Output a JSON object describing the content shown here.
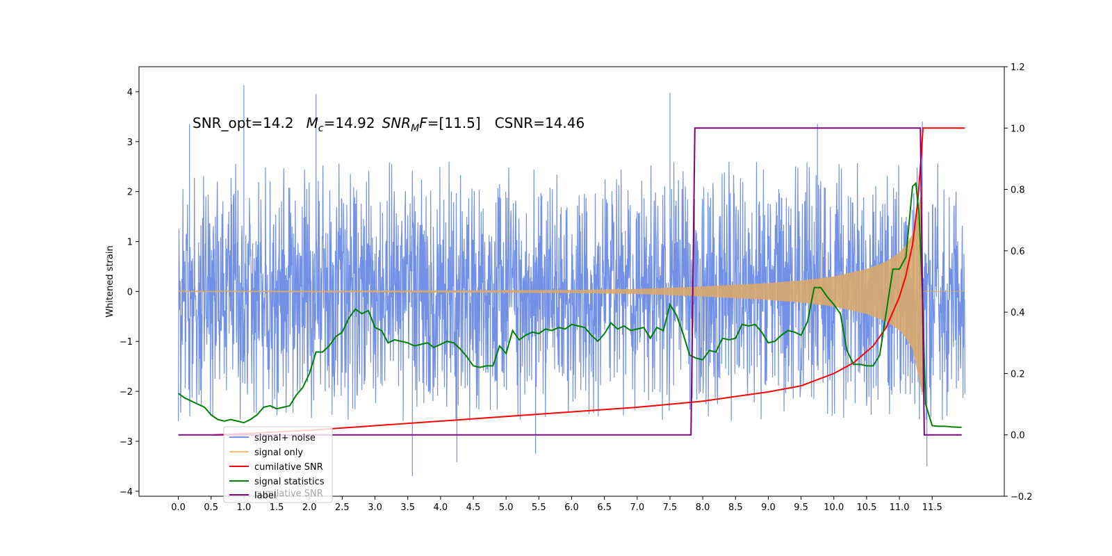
{
  "chart_data": {
    "type": "line",
    "ylabel": "Whitened strain",
    "annotation": {
      "snr_opt": "SNR_opt=14.2",
      "mc_sym": "M",
      "mc_sub": "c",
      "mc_val": "=14.92",
      "snrmf_sym": "SNR",
      "snrmf_sub": "M",
      "snrmf_f": "F",
      "snrmf_val": "=[11.5]",
      "csnr": "CSNR=14.46"
    },
    "x_ticks": [
      "0.0",
      "0.5",
      "1.0",
      "1.5",
      "2.0",
      "2.5",
      "3.0",
      "3.5",
      "4.0",
      "4.5",
      "5.0",
      "5.5",
      "6.0",
      "6.5",
      "7.0",
      "7.5",
      "8.0",
      "8.5",
      "9.0",
      "9.5",
      "10.0",
      "10.5",
      "11.0",
      "11.5"
    ],
    "xlim": [
      -0.6,
      12.6
    ],
    "y_left_ticks": [
      -4,
      -3,
      -2,
      -1,
      0,
      1,
      2,
      3,
      4
    ],
    "y_left_lim": [
      -4.1,
      4.5
    ],
    "y_right_ticks": [
      -0.2,
      0.0,
      0.2,
      0.4,
      0.6,
      0.8,
      1.0,
      1.2
    ],
    "y_right_lim": [
      -0.2,
      1.2
    ],
    "legend_placement": "lower-left",
    "legend": [
      "signal+ noise",
      "signal only",
      "cumilative SNR",
      "signal statistics",
      "label",
      "cumilative SNR"
    ],
    "colors": {
      "signal_noise": "#7190e6",
      "signal_only": "#d8a96a",
      "cumulative_snr": "#ff0000",
      "signal_statistics": "#008000",
      "label": "#800080"
    },
    "series": [
      {
        "name": "signal+ noise",
        "axis": "left",
        "x_range": [
          0.0,
          12.0
        ],
        "envelope_upper": 2.1,
        "envelope_lower": -2.1,
        "peaks": [
          [
            0.17,
            3.35
          ],
          [
            1.0,
            4.13
          ],
          [
            2.1,
            3.95
          ],
          [
            7.5,
            3.98
          ],
          [
            9.75,
            3.35
          ],
          [
            11.35,
            3.4
          ],
          [
            3.57,
            -3.7
          ],
          [
            4.25,
            -3.42
          ],
          [
            5.45,
            -3.25
          ],
          [
            11.42,
            -3.5
          ]
        ]
      },
      {
        "name": "signal only",
        "axis": "left",
        "x_range": [
          0.0,
          11.35
        ],
        "amplitude_x": [
          0.0,
          4.0,
          6.0,
          7.0,
          8.0,
          9.0,
          9.5,
          10.0,
          10.5,
          10.8,
          11.0,
          11.1,
          11.2,
          11.3,
          11.35
        ],
        "amplitude_y": [
          0.01,
          0.02,
          0.03,
          0.05,
          0.1,
          0.17,
          0.22,
          0.3,
          0.45,
          0.6,
          0.78,
          0.93,
          1.15,
          1.75,
          2.1
        ]
      },
      {
        "name": "cumilative SNR",
        "axis": "right",
        "x": [
          0.55,
          1.0,
          2.0,
          3.0,
          4.0,
          5.0,
          6.0,
          7.0,
          7.5,
          8.0,
          8.5,
          9.0,
          9.5,
          10.0,
          10.3,
          10.6,
          10.8,
          11.0,
          11.1,
          11.2,
          11.28,
          11.33,
          11.36,
          12.0
        ],
        "y": [
          0.0,
          0.004,
          0.015,
          0.03,
          0.045,
          0.06,
          0.075,
          0.09,
          0.1,
          0.11,
          0.125,
          0.14,
          0.16,
          0.2,
          0.235,
          0.29,
          0.35,
          0.45,
          0.52,
          0.62,
          0.76,
          0.9,
          1.0,
          1.0
        ]
      },
      {
        "name": "signal statistics",
        "axis": "right",
        "x": [
          0.0,
          0.1,
          0.2,
          0.3,
          0.4,
          0.5,
          0.6,
          0.7,
          0.8,
          0.9,
          1.0,
          1.1,
          1.2,
          1.3,
          1.4,
          1.5,
          1.6,
          1.7,
          1.8,
          1.9,
          2.0,
          2.1,
          2.2,
          2.3,
          2.4,
          2.5,
          2.6,
          2.7,
          2.8,
          2.9,
          3.0,
          3.1,
          3.2,
          3.3,
          3.4,
          3.5,
          3.6,
          3.7,
          3.8,
          3.9,
          4.0,
          4.1,
          4.2,
          4.3,
          4.4,
          4.5,
          4.6,
          4.7,
          4.8,
          4.9,
          5.0,
          5.1,
          5.2,
          5.3,
          5.4,
          5.5,
          5.6,
          5.7,
          5.8,
          5.9,
          6.0,
          6.1,
          6.2,
          6.3,
          6.4,
          6.5,
          6.6,
          6.7,
          6.8,
          6.9,
          7.0,
          7.1,
          7.2,
          7.3,
          7.4,
          7.5,
          7.6,
          7.7,
          7.8,
          7.9,
          8.0,
          8.1,
          8.2,
          8.3,
          8.4,
          8.5,
          8.6,
          8.7,
          8.8,
          8.9,
          9.0,
          9.1,
          9.2,
          9.3,
          9.4,
          9.5,
          9.6,
          9.7,
          9.8,
          9.9,
          10.0,
          10.1,
          10.2,
          10.3,
          10.4,
          10.5,
          10.6,
          10.7,
          10.8,
          10.9,
          11.0,
          11.1,
          11.2,
          11.25,
          11.3,
          11.35,
          11.4,
          11.5,
          11.6,
          11.7,
          11.8,
          11.9,
          11.95
        ],
        "y": [
          0.135,
          0.12,
          0.11,
          0.1,
          0.09,
          0.065,
          0.05,
          0.045,
          0.05,
          0.045,
          0.04,
          0.05,
          0.065,
          0.09,
          0.095,
          0.085,
          0.09,
          0.095,
          0.13,
          0.155,
          0.2,
          0.27,
          0.27,
          0.29,
          0.32,
          0.335,
          0.38,
          0.41,
          0.395,
          0.405,
          0.35,
          0.34,
          0.3,
          0.31,
          0.305,
          0.3,
          0.29,
          0.295,
          0.3,
          0.285,
          0.295,
          0.305,
          0.3,
          0.28,
          0.255,
          0.225,
          0.22,
          0.225,
          0.225,
          0.29,
          0.265,
          0.34,
          0.31,
          0.325,
          0.335,
          0.33,
          0.345,
          0.34,
          0.35,
          0.345,
          0.36,
          0.355,
          0.35,
          0.325,
          0.305,
          0.33,
          0.365,
          0.345,
          0.355,
          0.34,
          0.345,
          0.35,
          0.315,
          0.35,
          0.34,
          0.425,
          0.39,
          0.33,
          0.26,
          0.25,
          0.245,
          0.275,
          0.27,
          0.315,
          0.31,
          0.315,
          0.36,
          0.355,
          0.36,
          0.335,
          0.3,
          0.305,
          0.325,
          0.34,
          0.335,
          0.325,
          0.37,
          0.48,
          0.48,
          0.45,
          0.425,
          0.395,
          0.275,
          0.23,
          0.23,
          0.225,
          0.225,
          0.26,
          0.4,
          0.54,
          0.54,
          0.58,
          0.81,
          0.82,
          0.72,
          0.47,
          0.1,
          0.03,
          0.028,
          0.028,
          0.026,
          0.025,
          0.025
        ]
      },
      {
        "name": "label",
        "axis": "right",
        "x": [
          0.0,
          7.82,
          7.88,
          11.32,
          11.38,
          11.95
        ],
        "y": [
          0.0,
          0.0,
          1.0,
          1.0,
          0.0,
          0.0
        ]
      }
    ]
  }
}
